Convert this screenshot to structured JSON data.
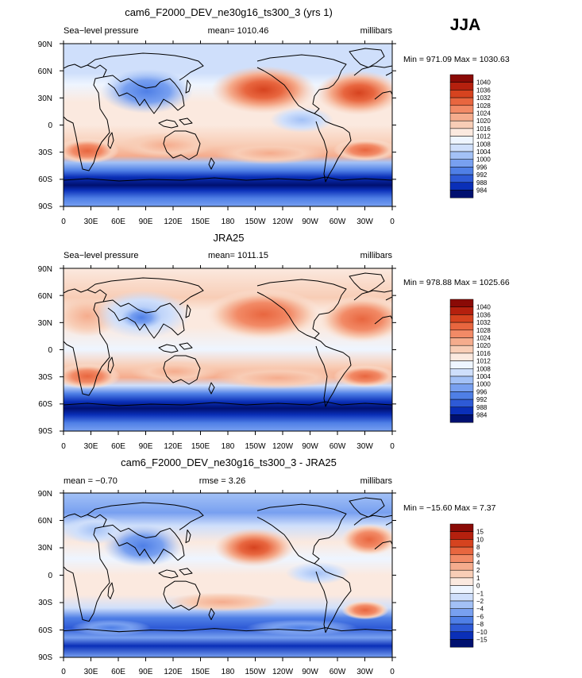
{
  "season": "JJA",
  "colors": {
    "slp_palette": [
      "#001070",
      "#0a2fb8",
      "#2e5ad6",
      "#4f7fe6",
      "#78a0f0",
      "#a3c1f6",
      "#cfdffb",
      "#eef5ff",
      "#fbe9df",
      "#f8cdb6",
      "#f5ac8d",
      "#f28a66",
      "#e8663f",
      "#d6431f",
      "#b5200e",
      "#8a0a06"
    ],
    "diff_palette": [
      "#001070",
      "#0a2fb8",
      "#2e5ad6",
      "#4f7fe6",
      "#78a0f0",
      "#a3c1f6",
      "#cfdffb",
      "#eef5ff",
      "#fbe9df",
      "#f8cdb6",
      "#f5ac8d",
      "#f28a66",
      "#e8663f",
      "#d6431f",
      "#b5200e",
      "#8a0a06"
    ]
  },
  "chart_data": [
    {
      "type": "heatmap",
      "title": "cam6_F2000_DEV_ne30g16_ts300_3 (yrs 1)",
      "left_label": "Sea−level pressure",
      "center_label": "mean=  1010.46",
      "right_label": "millibars",
      "minmax": "Min = 971.09  Max = 1030.63",
      "xticks": [
        "0",
        "30E",
        "60E",
        "90E",
        "120E",
        "150E",
        "180",
        "150W",
        "120W",
        "90W",
        "60W",
        "30W",
        "0"
      ],
      "yticks": [
        "90N",
        "60N",
        "30N",
        "0",
        "30S",
        "60S",
        "90S"
      ],
      "xlim": [
        0,
        360
      ],
      "ylim": [
        -90,
        90
      ],
      "levels": [
        "1040",
        "1036",
        "1032",
        "1028",
        "1024",
        "1020",
        "1016",
        "1012",
        "1008",
        "1004",
        "1000",
        "996",
        "992",
        "988",
        "984"
      ]
    },
    {
      "type": "heatmap",
      "title": "JRA25",
      "left_label": "Sea−level pressure",
      "center_label": "mean=  1011.15",
      "right_label": "millibars",
      "minmax": "Min = 978.88  Max = 1025.66",
      "xticks": [
        "0",
        "30E",
        "60E",
        "90E",
        "120E",
        "150E",
        "180",
        "150W",
        "120W",
        "90W",
        "60W",
        "30W",
        "0"
      ],
      "yticks": [
        "90N",
        "60N",
        "30N",
        "0",
        "30S",
        "60S",
        "90S"
      ],
      "xlim": [
        0,
        360
      ],
      "ylim": [
        -90,
        90
      ],
      "levels": [
        "1040",
        "1036",
        "1032",
        "1028",
        "1024",
        "1020",
        "1016",
        "1012",
        "1008",
        "1004",
        "1000",
        "996",
        "992",
        "988",
        "984"
      ]
    },
    {
      "type": "heatmap",
      "title": "cam6_F2000_DEV_ne30g16_ts300_3 - JRA25",
      "left_label": "mean =   −0.70",
      "center_label": "rmse =    3.26",
      "right_label": "millibars",
      "minmax": "Min = −15.60  Max =    7.37",
      "xticks": [
        "0",
        "30E",
        "60E",
        "90E",
        "120E",
        "150E",
        "180",
        "150W",
        "120W",
        "90W",
        "60W",
        "30W",
        "0"
      ],
      "yticks": [
        "90N",
        "60N",
        "30N",
        "0",
        "30S",
        "60S",
        "90S"
      ],
      "xlim": [
        0,
        360
      ],
      "ylim": [
        -90,
        90
      ],
      "levels": [
        "15",
        "10",
        "8",
        "6",
        "4",
        "2",
        "1",
        "0",
        "−1",
        "−2",
        "−4",
        "−6",
        "−8",
        "−10",
        "−15"
      ]
    }
  ]
}
